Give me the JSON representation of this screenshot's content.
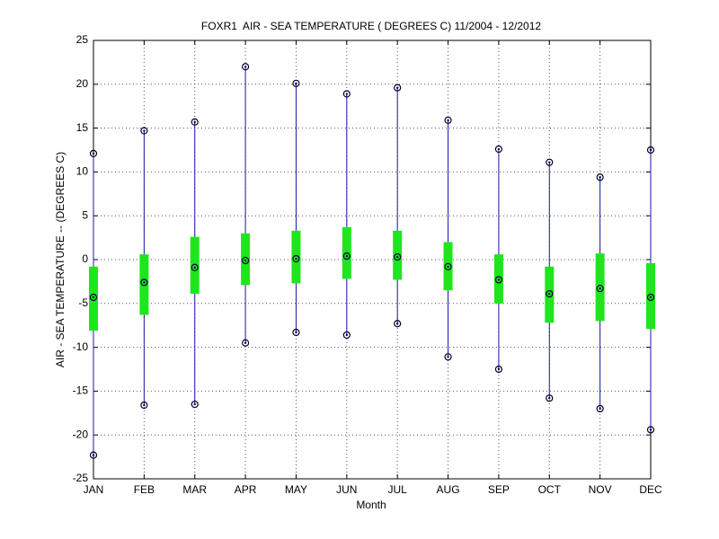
{
  "chart_data": {
    "type": "boxplot",
    "title": "FOXR1  AIR - SEA TEMPERATURE ( DEGREES C) 11/2004 - 12/2012",
    "x_label": "Month",
    "y_label": "AIR - SEA TEMPERATURE -- (DEGREES C)",
    "categories": [
      "JAN",
      "FEB",
      "MAR",
      "APR",
      "MAY",
      "JUN",
      "JUL",
      "AUG",
      "SEP",
      "OCT",
      "NOV",
      "DEC"
    ],
    "max": [
      12.1,
      14.7,
      15.7,
      22.0,
      20.1,
      18.9,
      19.6,
      15.9,
      12.6,
      11.1,
      9.4,
      12.5
    ],
    "min": [
      -22.3,
      -16.6,
      -16.5,
      -9.5,
      -8.3,
      -8.6,
      -7.3,
      -11.1,
      -12.5,
      -15.8,
      -17.0,
      -19.4
    ],
    "mean": [
      -4.3,
      -2.6,
      -0.9,
      -0.1,
      0.1,
      0.4,
      0.3,
      -0.8,
      -2.3,
      -3.9,
      -3.3,
      -4.3
    ],
    "box_top": [
      -0.8,
      0.6,
      2.6,
      3.0,
      3.3,
      3.7,
      3.3,
      2.0,
      0.6,
      -0.8,
      0.7,
      -0.4
    ],
    "box_bottom": [
      -8.1,
      -6.3,
      -3.9,
      -2.9,
      -2.7,
      -2.2,
      -2.3,
      -3.5,
      -5.0,
      -7.2,
      -7.0,
      -7.9
    ],
    "whisker_color": "#1a1aa6",
    "box_color": "#1ee61e",
    "marker_color": "#000033",
    "ylim": [
      -25,
      25
    ],
    "yticks": [
      -25,
      -20,
      -15,
      -10,
      -5,
      0,
      5,
      10,
      15,
      20,
      25
    ],
    "grid": true
  }
}
